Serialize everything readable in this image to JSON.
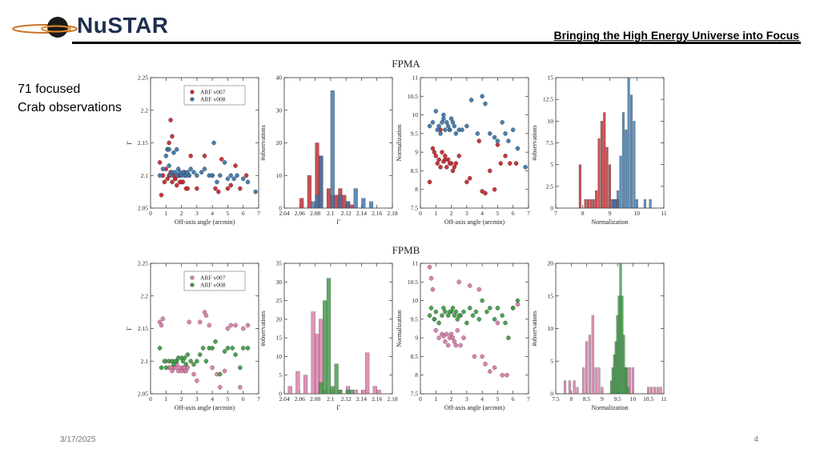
{
  "header": {
    "logo_text": "NuSTAR",
    "tagline": "Bringing the High Energy Universe into Focus"
  },
  "caption": {
    "line1": "71 focused",
    "line2": "Crab observations"
  },
  "footer": {
    "date": "3/17/2025",
    "page": "4"
  },
  "colors": {
    "fpma_v007": "#c1272d",
    "fpma_v008": "#3a74a8",
    "fpmb_v007": "#d97aa8",
    "fpmb_v008": "#3e9a45"
  },
  "chart_data": [
    {
      "id": "fpma_gamma",
      "type": "scatter",
      "panel_title": "FPMA",
      "xlabel": "Off-axis angle (arcmin)",
      "ylabel": "Γ",
      "xlim": [
        0,
        7
      ],
      "ylim": [
        2.05,
        2.25
      ],
      "xticks": [
        "0",
        "1",
        "2",
        "3",
        "4",
        "5",
        "6",
        "7"
      ],
      "yticks": [
        "2.05",
        "2.1",
        "2.15",
        "2.2",
        "2.25"
      ],
      "legend": [
        "ARF v007",
        "ARF v008"
      ],
      "series": [
        {
          "name": "ARF v007",
          "color": "fpma_v007",
          "x": [
            0.6,
            0.7,
            0.8,
            0.9,
            1.0,
            1.1,
            1.2,
            1.2,
            1.3,
            1.4,
            1.5,
            1.6,
            1.7,
            1.8,
            1.9,
            2.0,
            2.1,
            2.2,
            2.3,
            2.4,
            1.3,
            1.6,
            1.9,
            2.6,
            3.0,
            3.5,
            4.0,
            4.2,
            4.4,
            4.6,
            5.0,
            5.2,
            5.5,
            5.8,
            6.2,
            1.4,
            1.1,
            2.5
          ],
          "y": [
            2.12,
            2.07,
            2.1,
            2.09,
            2.11,
            2.14,
            2.1,
            2.15,
            2.185,
            2.09,
            2.1,
            2.095,
            2.085,
            2.1,
            2.1,
            2.09,
            2.09,
            2.105,
            2.08,
            2.08,
            2.105,
            2.095,
            2.09,
            2.13,
            2.08,
            2.13,
            2.1,
            2.08,
            2.075,
            2.125,
            2.08,
            2.085,
            2.115,
            2.08,
            2.1,
            2.16,
            2.095,
            2.1
          ]
        },
        {
          "name": "ARF v008",
          "color": "fpma_v008",
          "x": [
            0.6,
            0.8,
            1.0,
            1.1,
            1.2,
            1.3,
            1.4,
            1.5,
            1.6,
            1.7,
            1.8,
            1.9,
            2.0,
            2.1,
            2.2,
            2.3,
            2.4,
            2.5,
            2.6,
            2.8,
            3.0,
            3.3,
            3.5,
            3.8,
            4.0,
            4.1,
            4.3,
            4.5,
            4.8,
            5.0,
            5.2,
            5.4,
            5.6,
            6.0,
            6.3,
            6.8,
            1.2,
            1.7
          ],
          "y": [
            2.1,
            2.11,
            2.13,
            2.14,
            2.115,
            2.1,
            2.105,
            2.135,
            2.105,
            2.1,
            2.11,
            2.105,
            2.1,
            2.105,
            2.1,
            2.1,
            2.105,
            2.1,
            2.11,
            2.105,
            2.1,
            2.105,
            2.11,
            2.1,
            2.1,
            2.15,
            2.09,
            2.1,
            2.12,
            2.095,
            2.1,
            2.095,
            2.1,
            2.095,
            2.09,
            2.075,
            2.14,
            2.14
          ]
        }
      ]
    },
    {
      "id": "fpma_gamma_hist",
      "type": "bar",
      "xlabel": "Γ",
      "ylabel": "#observations",
      "xlim": [
        2.04,
        2.18
      ],
      "ylim": [
        0,
        40
      ],
      "bin_width": 0.005,
      "xticks": [
        "2.04",
        "2.06",
        "2.08",
        "2.1",
        "2.12",
        "2.14",
        "2.16",
        "2.18"
      ],
      "yticks": [
        "0",
        "10",
        "20",
        "30",
        "40"
      ],
      "series": [
        {
          "name": "ARF v007",
          "color": "fpma_v007",
          "bin_centers": [
            2.0625,
            2.0725,
            2.0825,
            2.0875,
            2.0975,
            2.1025,
            2.1075,
            2.1125,
            2.1175,
            2.1225,
            2.1275
          ],
          "values": [
            3,
            10,
            20,
            16,
            6,
            4,
            4,
            6,
            4,
            2,
            1
          ]
        },
        {
          "name": "ARF v008",
          "color": "fpma_v008",
          "bin_centers": [
            2.0775,
            2.0825,
            2.0875,
            2.0925,
            2.1025,
            2.1125,
            2.1225,
            2.1325,
            2.1425,
            2.1525
          ],
          "values": [
            2,
            4,
            16,
            0,
            36,
            4,
            2,
            6,
            3,
            2
          ]
        }
      ]
    },
    {
      "id": "fpma_norm",
      "type": "scatter",
      "xlabel": "Off-axis angle (arcmin)",
      "ylabel": "Normalization",
      "xlim": [
        0,
        7
      ],
      "ylim": [
        7.5,
        11
      ],
      "xticks": [
        "0",
        "1",
        "2",
        "3",
        "4",
        "5",
        "6",
        "7"
      ],
      "yticks": [
        "7.5",
        "8",
        "8.5",
        "9",
        "9.5",
        "10",
        "10.5",
        "11"
      ],
      "series": [
        {
          "name": "ARF v007",
          "color": "fpma_v007",
          "x": [
            0.6,
            0.8,
            1.0,
            1.1,
            1.2,
            1.3,
            1.4,
            1.5,
            1.6,
            1.7,
            1.8,
            1.9,
            2.0,
            2.1,
            2.2,
            2.3,
            2.5,
            3.0,
            3.2,
            3.8,
            4.0,
            4.2,
            4.5,
            4.8,
            5.0,
            5.2,
            5.5,
            5.8,
            6.2,
            1.3,
            0.9,
            1.6
          ],
          "y": [
            8.2,
            9.1,
            8.9,
            8.7,
            8.8,
            8.6,
            9.0,
            8.75,
            8.9,
            8.6,
            8.8,
            8.7,
            8.7,
            8.5,
            8.6,
            8.7,
            8.9,
            8.2,
            8.3,
            9.3,
            7.95,
            7.9,
            8.5,
            8.0,
            9.2,
            8.7,
            8.9,
            8.7,
            8.7,
            9.6,
            9.0,
            8.8
          ]
        },
        {
          "name": "ARF v008",
          "color": "fpma_v008",
          "x": [
            0.6,
            0.8,
            1.0,
            1.1,
            1.2,
            1.3,
            1.4,
            1.5,
            1.6,
            1.7,
            1.8,
            1.9,
            2.0,
            2.1,
            2.2,
            2.3,
            2.5,
            2.7,
            3.0,
            3.3,
            3.7,
            4.0,
            4.2,
            4.5,
            4.8,
            5.0,
            5.3,
            5.5,
            5.7,
            6.0,
            6.3,
            6.8,
            1.5,
            1.9
          ],
          "y": [
            9.7,
            9.8,
            10.1,
            9.6,
            9.7,
            9.5,
            9.8,
            9.9,
            9.6,
            9.8,
            9.7,
            9.6,
            9.9,
            9.8,
            9.7,
            9.5,
            9.6,
            9.6,
            9.7,
            10.4,
            9.5,
            10.5,
            10.3,
            9.5,
            9.4,
            9.3,
            9.8,
            9.5,
            9.3,
            9.6,
            9.1,
            8.6,
            10.0,
            9.6
          ]
        }
      ]
    },
    {
      "id": "fpma_norm_hist",
      "type": "bar",
      "xlabel": "Normalization",
      "ylabel": "#observations",
      "xlim": [
        7,
        11
      ],
      "ylim": [
        0,
        15
      ],
      "bin_width": 0.08,
      "xticks": [
        "7",
        "8",
        "9",
        "10",
        "11"
      ],
      "yticks": [
        "0",
        "2.5",
        "5",
        "7.5",
        "10",
        "12.5",
        "15"
      ],
      "series": [
        {
          "name": "ARF v007",
          "color": "fpma_v007",
          "bin_centers": [
            7.9,
            8.1,
            8.2,
            8.3,
            8.4,
            8.5,
            8.6,
            8.7,
            8.8,
            8.9,
            9.0,
            9.1,
            9.2,
            9.3
          ],
          "values": [
            5,
            1,
            1,
            1,
            1,
            2,
            8,
            10,
            11,
            7,
            5,
            1,
            1,
            1
          ]
        },
        {
          "name": "ARF v008",
          "color": "fpma_v008",
          "bin_centers": [
            9.1,
            9.2,
            9.3,
            9.4,
            9.5,
            9.6,
            9.7,
            9.8,
            9.9,
            10.0,
            10.3,
            10.5
          ],
          "values": [
            1,
            1,
            2,
            6,
            11,
            9,
            15,
            13,
            10,
            1,
            1,
            1
          ]
        }
      ]
    },
    {
      "id": "fpmb_gamma",
      "type": "scatter",
      "panel_title": "FPMB",
      "xlabel": "Off-axis angle (arcmin)",
      "ylabel": "Γ",
      "xlim": [
        0,
        7
      ],
      "ylim": [
        2.05,
        2.25
      ],
      "xticks": [
        "0",
        "1",
        "2",
        "3",
        "4",
        "5",
        "6",
        "7"
      ],
      "yticks": [
        "2.05",
        "2.1",
        "2.15",
        "2.2",
        "2.25"
      ],
      "legend": [
        "ARF v007",
        "ARF v008"
      ],
      "series": [
        {
          "name": "ARF v007",
          "color": "fpmb_v007",
          "x": [
            0.6,
            0.7,
            0.8,
            1.0,
            1.2,
            1.4,
            1.5,
            1.6,
            1.7,
            1.8,
            1.9,
            2.0,
            2.1,
            2.2,
            2.3,
            2.4,
            2.5,
            2.8,
            3.0,
            3.2,
            3.5,
            3.6,
            3.8,
            4.0,
            4.3,
            4.5,
            4.8,
            5.0,
            5.2,
            5.5,
            5.8,
            6.0,
            6.3,
            1.3,
            2.2
          ],
          "y": [
            2.16,
            2.155,
            2.165,
            2.1,
            2.09,
            2.085,
            2.09,
            2.09,
            2.095,
            2.085,
            2.09,
            2.085,
            2.09,
            2.085,
            2.085,
            2.09,
            2.16,
            2.08,
            2.07,
            2.16,
            2.175,
            2.17,
            2.155,
            2.09,
            2.08,
            2.06,
            2.085,
            2.15,
            2.155,
            2.155,
            2.06,
            2.15,
            2.155,
            2.09,
            2.09
          ]
        },
        {
          "name": "ARF v008",
          "color": "fpmb_v008",
          "x": [
            0.6,
            0.7,
            0.9,
            1.0,
            1.2,
            1.4,
            1.5,
            1.7,
            1.8,
            2.0,
            2.1,
            2.2,
            2.4,
            2.6,
            2.8,
            3.0,
            3.2,
            3.4,
            3.6,
            3.8,
            4.0,
            4.2,
            4.5,
            4.8,
            5.0,
            5.3,
            5.5,
            5.8,
            6.0,
            6.3,
            1.6,
            2.3
          ],
          "y": [
            2.12,
            2.09,
            2.1,
            2.09,
            2.1,
            2.1,
            2.095,
            2.1,
            2.105,
            2.105,
            2.1,
            2.105,
            2.11,
            2.1,
            2.095,
            2.1,
            2.11,
            2.12,
            2.1,
            2.12,
            2.12,
            2.13,
            2.08,
            2.115,
            2.12,
            2.12,
            2.11,
            2.09,
            2.12,
            2.12,
            2.1,
            2.095
          ]
        }
      ]
    },
    {
      "id": "fpmb_gamma_hist",
      "type": "bar",
      "xlabel": "Γ",
      "ylabel": "#observations",
      "xlim": [
        2.04,
        2.18
      ],
      "ylim": [
        0,
        35
      ],
      "bin_width": 0.005,
      "xticks": [
        "2.04",
        "2.06",
        "2.08",
        "2.1",
        "2.12",
        "2.14",
        "2.16",
        "2.18"
      ],
      "yticks": [
        "0",
        "5",
        "10",
        "15",
        "20",
        "25",
        "30",
        "35"
      ],
      "series": [
        {
          "name": "ARF v007",
          "color": "fpmb_v007",
          "bin_centers": [
            2.0475,
            2.0575,
            2.0675,
            2.0775,
            2.0825,
            2.0875,
            2.0925,
            2.1025,
            2.1125,
            2.1225,
            2.1325,
            2.1425,
            2.1475,
            2.1575,
            2.1625
          ],
          "values": [
            2,
            6,
            5,
            22,
            16,
            20,
            1,
            1,
            1,
            2,
            1,
            1,
            11,
            2,
            1
          ]
        },
        {
          "name": "ARF v008",
          "color": "fpmb_v008",
          "bin_centers": [
            2.0875,
            2.0925,
            2.0975,
            2.1025,
            2.1075,
            2.1125,
            2.1225,
            2.1275
          ],
          "values": [
            3,
            25,
            31,
            2,
            8,
            1,
            1,
            1
          ]
        }
      ]
    },
    {
      "id": "fpmb_norm",
      "type": "scatter",
      "xlabel": "Off-axis angle (arcmin)",
      "ylabel": "Normalization",
      "xlim": [
        0,
        7
      ],
      "ylim": [
        7.5,
        11
      ],
      "xticks": [
        "0",
        "1",
        "2",
        "3",
        "4",
        "5",
        "6",
        "7"
      ],
      "yticks": [
        "7.5",
        "8",
        "8.5",
        "9",
        "9.5",
        "10",
        "10.5",
        "11"
      ],
      "series": [
        {
          "name": "ARF v007",
          "color": "fpmb_v007",
          "x": [
            0.6,
            0.7,
            0.8,
            1.0,
            1.2,
            1.4,
            1.5,
            1.6,
            1.7,
            1.8,
            1.9,
            2.0,
            2.1,
            2.2,
            2.3,
            2.4,
            2.5,
            2.8,
            3.2,
            3.5,
            3.8,
            4.0,
            4.2,
            4.5,
            4.8,
            5.0,
            5.3,
            5.6,
            6.0,
            6.3,
            0.9,
            2.6
          ],
          "y": [
            10.9,
            10.6,
            10.3,
            9.2,
            9.0,
            9.1,
            9.05,
            8.9,
            9.1,
            8.8,
            9.0,
            9.1,
            9.0,
            8.9,
            8.8,
            9.2,
            10.5,
            9.0,
            10.4,
            8.5,
            10.3,
            8.5,
            8.3,
            8.1,
            8.2,
            9.4,
            8.0,
            8.0,
            9.8,
            9.9,
            9.5,
            8.8
          ]
        },
        {
          "name": "ARF v008",
          "color": "fpmb_v008",
          "x": [
            0.6,
            0.7,
            0.9,
            1.0,
            1.2,
            1.4,
            1.5,
            1.6,
            1.8,
            2.0,
            2.1,
            2.2,
            2.3,
            2.4,
            2.6,
            2.8,
            3.0,
            3.2,
            3.4,
            3.6,
            3.8,
            4.0,
            4.3,
            4.5,
            4.8,
            5.0,
            5.3,
            5.5,
            5.7,
            6.0,
            6.3,
            1.9,
            2.5
          ],
          "y": [
            9.6,
            9.8,
            9.5,
            9.7,
            9.4,
            9.6,
            9.8,
            9.7,
            9.6,
            9.7,
            9.8,
            9.6,
            9.7,
            9.5,
            9.6,
            9.7,
            9.4,
            9.8,
            9.6,
            9.7,
            9.5,
            10.0,
            9.7,
            9.8,
            9.5,
            9.8,
            9.6,
            9.4,
            9.0,
            9.8,
            10.0,
            9.7,
            9.6
          ]
        }
      ]
    },
    {
      "id": "fpmb_norm_hist",
      "type": "bar",
      "xlabel": "Normalization",
      "ylabel": "#observations",
      "xlim": [
        7.5,
        11
      ],
      "ylim": [
        0,
        20
      ],
      "bin_width": 0.07,
      "xticks": [
        "7.5",
        "8",
        "8.5",
        "9",
        "9.5",
        "10",
        "10.5",
        "11"
      ],
      "yticks": [
        "0",
        "5",
        "10",
        "15",
        "20"
      ],
      "series": [
        {
          "name": "ARF v007",
          "color": "fpmb_v007",
          "bin_centers": [
            7.8,
            7.95,
            8.1,
            8.2,
            8.4,
            8.5,
            8.6,
            8.7,
            8.8,
            8.9,
            9.0,
            9.8,
            9.9,
            10.0,
            10.5,
            10.6,
            10.7,
            10.8,
            10.9
          ],
          "values": [
            2,
            2,
            2,
            1,
            4,
            8,
            9,
            12,
            4,
            4,
            1,
            4,
            4,
            4,
            1,
            1,
            1,
            1,
            1
          ]
        },
        {
          "name": "ARF v008",
          "color": "fpmb_v008",
          "bin_centers": [
            9.3,
            9.35,
            9.4,
            9.45,
            9.5,
            9.55,
            9.6,
            9.65,
            9.7,
            9.75,
            9.8,
            9.85
          ],
          "values": [
            2,
            4,
            6,
            8,
            12,
            15,
            20,
            15,
            9,
            4,
            4,
            1
          ]
        }
      ]
    }
  ]
}
